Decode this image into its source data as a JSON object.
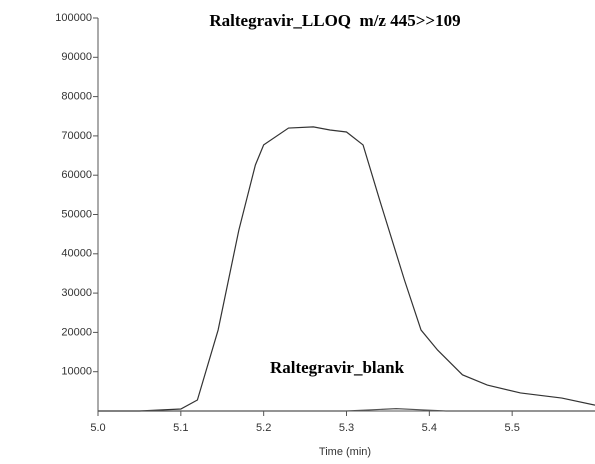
{
  "chart_data": {
    "type": "line",
    "title": "Raltegravir_LLOQ  m/z 445>>109",
    "x_label": "Time (min)",
    "series": [
      {
        "color": "#333333",
        "x": [
          5.0,
          5.05,
          5.1,
          5.12,
          5.145,
          5.17,
          5.19,
          5.2,
          5.23,
          5.26,
          5.28,
          5.3,
          5.32,
          5.34,
          5.37,
          5.39,
          5.41,
          5.44,
          5.47,
          5.51,
          5.56,
          5.6
        ],
        "values": [
          0,
          0,
          500,
          2800,
          20600,
          46000,
          62600,
          67700,
          72000,
          72300,
          71500,
          71000,
          67700,
          53700,
          33300,
          20600,
          15500,
          9200,
          6600,
          4600,
          3300,
          1500
        ]
      },
      {
        "name": "Raltegravir_blank",
        "color": "#555555",
        "x": [
          5.0,
          5.3,
          5.33,
          5.36,
          5.39,
          5.42,
          5.6
        ],
        "values": [
          0,
          0,
          300,
          600,
          300,
          0,
          0
        ]
      }
    ],
    "xlim": [
      5.0,
      5.6
    ],
    "xticks": [
      {
        "value": 5.0,
        "label": "5.0"
      },
      5.1,
      5.2,
      5.3,
      5.4,
      5.5
    ],
    "ylim": [
      0,
      100000
    ],
    "yticks": [
      10000,
      20000,
      30000,
      40000,
      50000,
      60000,
      70000,
      80000,
      90000,
      100000
    ]
  }
}
